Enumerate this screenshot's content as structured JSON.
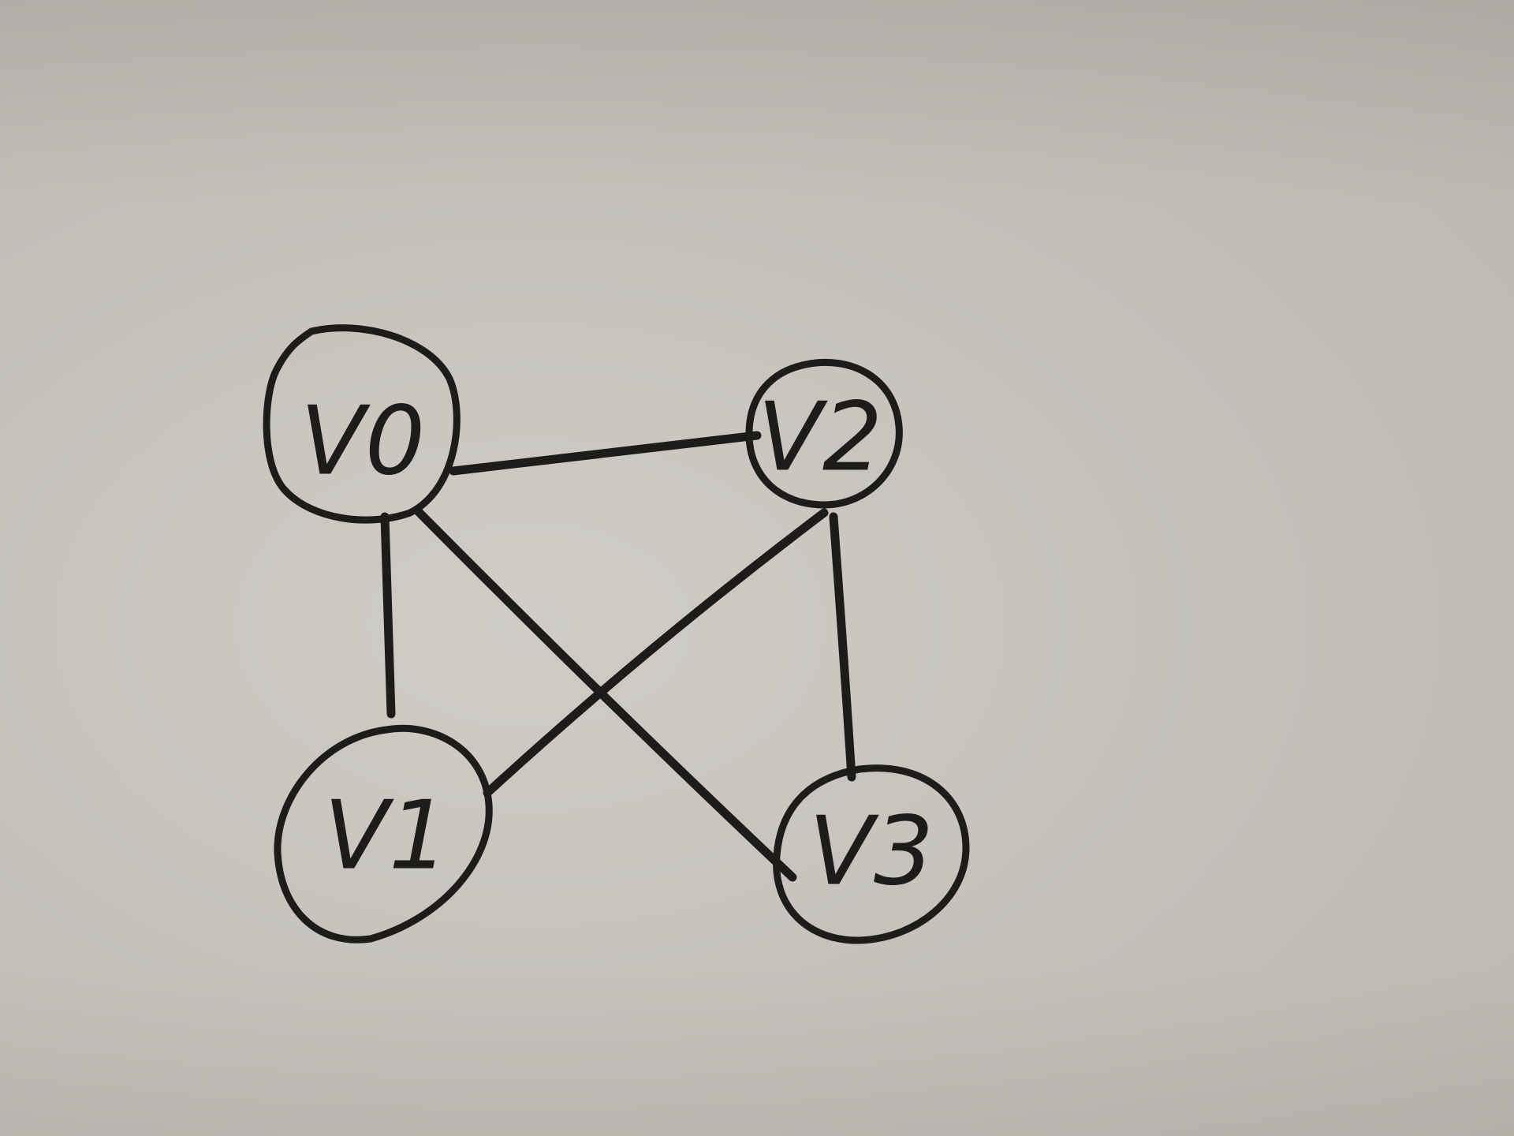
{
  "nodes": [
    {
      "id": "v0",
      "label": "V0"
    },
    {
      "id": "v1",
      "label": "V1"
    },
    {
      "id": "v2",
      "label": "V2"
    },
    {
      "id": "v3",
      "label": "V3"
    }
  ],
  "edges": [
    {
      "from": "v0",
      "to": "v2"
    },
    {
      "from": "v0",
      "to": "v1"
    },
    {
      "from": "v0",
      "to": "v3"
    },
    {
      "from": "v2",
      "to": "v1"
    },
    {
      "from": "v2",
      "to": "v3"
    }
  ],
  "colors": {
    "ink": "#1e1c1a",
    "paper": "#c8c5bf"
  }
}
